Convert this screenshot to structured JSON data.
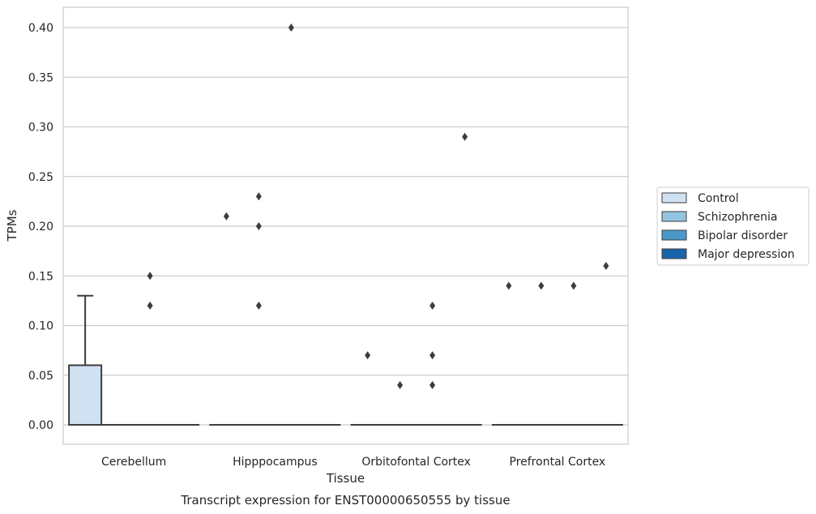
{
  "chart_data": {
    "type": "box",
    "title": "",
    "caption": "Transcript expression for ENST00000650555 by tissue",
    "xlabel": "Tissue",
    "ylabel": "TPMs",
    "ylim": [
      -0.02,
      0.42
    ],
    "yticks": [
      0.0,
      0.05,
      0.1,
      0.15,
      0.2,
      0.25,
      0.3,
      0.35,
      0.4
    ],
    "ytick_labels": [
      "0.00",
      "0.05",
      "0.10",
      "0.15",
      "0.20",
      "0.25",
      "0.30",
      "0.35",
      "0.40"
    ],
    "categories": [
      "Cerebellum",
      "Hipppocampus",
      "Orbitofontal Cortex",
      "Prefrontal Cortex"
    ],
    "grid": "horizontal",
    "legend_position": "right",
    "series": [
      {
        "name": "Control",
        "color": "#d0e1f2",
        "boxes": [
          {
            "q1": 0.0,
            "median": 0.0,
            "q3": 0.06,
            "whisker_low": 0.0,
            "whisker_high": 0.13,
            "outliers": []
          },
          {
            "q1": 0.0,
            "median": 0.0,
            "q3": 0.0,
            "whisker_low": 0.0,
            "whisker_high": 0.0,
            "outliers": [
              0.21
            ]
          },
          {
            "q1": 0.0,
            "median": 0.0,
            "q3": 0.0,
            "whisker_low": 0.0,
            "whisker_high": 0.0,
            "outliers": [
              0.07
            ]
          },
          {
            "q1": 0.0,
            "median": 0.0,
            "q3": 0.0,
            "whisker_low": 0.0,
            "whisker_high": 0.0,
            "outliers": [
              0.14
            ]
          }
        ]
      },
      {
        "name": "Schizophrenia",
        "color": "#94c4df",
        "boxes": [
          {
            "q1": 0.0,
            "median": 0.0,
            "q3": 0.0,
            "whisker_low": 0.0,
            "whisker_high": 0.0,
            "outliers": []
          },
          {
            "q1": 0.0,
            "median": 0.0,
            "q3": 0.0,
            "whisker_low": 0.0,
            "whisker_high": 0.0,
            "outliers": [
              0.23,
              0.2,
              0.12
            ]
          },
          {
            "q1": 0.0,
            "median": 0.0,
            "q3": 0.0,
            "whisker_low": 0.0,
            "whisker_high": 0.0,
            "outliers": [
              0.04
            ]
          },
          {
            "q1": 0.0,
            "median": 0.0,
            "q3": 0.0,
            "whisker_low": 0.0,
            "whisker_high": 0.0,
            "outliers": [
              0.14
            ]
          }
        ]
      },
      {
        "name": "Bipolar disorder",
        "color": "#4a98c9",
        "boxes": [
          {
            "q1": 0.0,
            "median": 0.0,
            "q3": 0.0,
            "whisker_low": 0.0,
            "whisker_high": 0.0,
            "outliers": [
              0.15,
              0.12
            ]
          },
          {
            "q1": 0.0,
            "median": 0.0,
            "q3": 0.0,
            "whisker_low": 0.0,
            "whisker_high": 0.0,
            "outliers": [
              0.4
            ]
          },
          {
            "q1": 0.0,
            "median": 0.0,
            "q3": 0.0,
            "whisker_low": 0.0,
            "whisker_high": 0.0,
            "outliers": [
              0.12,
              0.07,
              0.04
            ]
          },
          {
            "q1": 0.0,
            "median": 0.0,
            "q3": 0.0,
            "whisker_low": 0.0,
            "whisker_high": 0.0,
            "outliers": [
              0.14
            ]
          }
        ]
      },
      {
        "name": "Major depression",
        "color": "#1764ab",
        "boxes": [
          {
            "q1": 0.0,
            "median": 0.0,
            "q3": 0.0,
            "whisker_low": 0.0,
            "whisker_high": 0.0,
            "outliers": []
          },
          {
            "q1": 0.0,
            "median": 0.0,
            "q3": 0.0,
            "whisker_low": 0.0,
            "whisker_high": 0.0,
            "outliers": []
          },
          {
            "q1": 0.0,
            "median": 0.0,
            "q3": 0.0,
            "whisker_low": 0.0,
            "whisker_high": 0.0,
            "outliers": [
              0.29
            ]
          },
          {
            "q1": 0.0,
            "median": 0.0,
            "q3": 0.0,
            "whisker_low": 0.0,
            "whisker_high": 0.0,
            "outliers": [
              0.16
            ]
          }
        ]
      }
    ]
  }
}
